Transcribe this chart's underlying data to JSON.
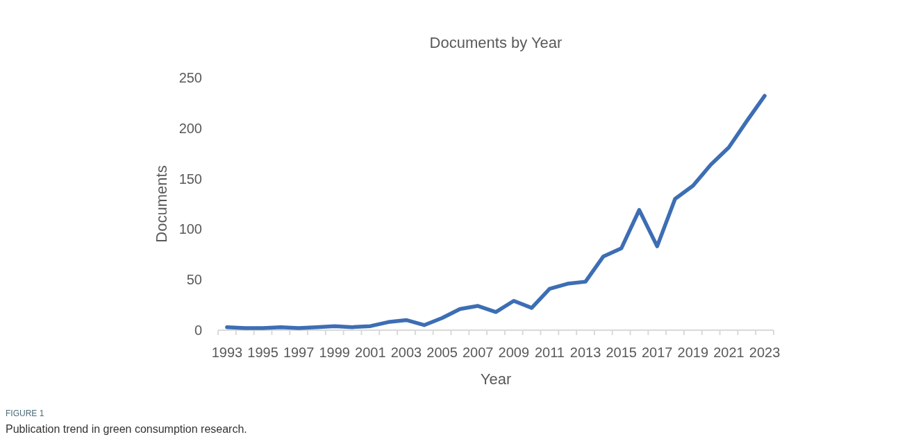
{
  "chart_data": {
    "type": "line",
    "title": "Documents by Year",
    "xlabel": "Year",
    "ylabel": "Documents",
    "categories": [
      "1993",
      null,
      "1995",
      null,
      "1997",
      null,
      "1999",
      null,
      "2001",
      null,
      "2003",
      null,
      "2005",
      null,
      "2007",
      null,
      "2009",
      null,
      "2011",
      null,
      "2013",
      null,
      "2015",
      null,
      "2017",
      null,
      "2019",
      null,
      "2021",
      null,
      "2023"
    ],
    "series": [
      {
        "color": "#3d6eb4",
        "values": [
          3,
          2,
          2,
          3,
          2,
          3,
          4,
          3,
          4,
          8,
          10,
          5,
          12,
          21,
          24,
          18,
          29,
          22,
          41,
          46,
          48,
          73,
          81,
          119,
          83,
          130,
          143,
          164,
          181,
          207,
          232
        ]
      }
    ],
    "ylim": [
      0,
      250
    ],
    "yticks": [
      0,
      50,
      100,
      150,
      200,
      250
    ],
    "grid": false,
    "marker": "none",
    "line_style": "solid",
    "annotations": [
      "FIGURE 1",
      "Publication trend in green consumption research."
    ]
  }
}
